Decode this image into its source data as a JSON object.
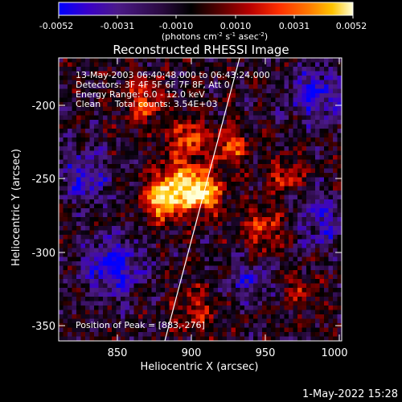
{
  "colorbar": {
    "ticks": [
      "-0.0052",
      "-0.0031",
      "-0.0010",
      "0.0010",
      "0.0031",
      "0.0052"
    ],
    "unit_prefix": "(photons cm",
    "unit_sup1": "-2",
    "unit_mid1": " s",
    "unit_sup2": "-1",
    "unit_mid2": " asec",
    "unit_sup3": "-2",
    "unit_end": ")",
    "palette": [
      "#0000ff",
      "#3a00c8",
      "#4b1a88",
      "#2a0a40",
      "#000000",
      "#5a0000",
      "#b80000",
      "#ff3000",
      "#ff7a00",
      "#ffc400",
      "#ffffd8"
    ]
  },
  "title": "Reconstructed RHESSI Image",
  "annotations": {
    "line1": "13-May-2003 06:40:48.000 to 06:43:24.000",
    "line2": "Detectors: 3F 4F 5F 6F 7F 8F, Att 0",
    "line3": "Energy Range: 6.0 - 12.0 keV",
    "line4": "Clean     Total counts: 3.54E+03",
    "peak": "Position of Peak = [883,-276]"
  },
  "axes": {
    "xlabel": "Heliocentric X (arcsec)",
    "ylabel": "Heliocentric Y (arcsec)",
    "xticks": [
      "850",
      "900",
      "950",
      "1000"
    ],
    "yticks": [
      "-200",
      "-250",
      "-300",
      "-350"
    ],
    "xrange": [
      813,
      1003
    ],
    "yrange": [
      -370,
      -180
    ]
  },
  "footer": {
    "date": "1-May-2022 15:28"
  },
  "image_sources": [
    {
      "x": 883,
      "y": -276,
      "amp": 1.0,
      "s": 9
    },
    {
      "x": 910,
      "y": -271,
      "amp": 1.0,
      "s": 9
    },
    {
      "x": 895,
      "y": -262,
      "amp": 0.75,
      "s": 12
    },
    {
      "x": 900,
      "y": -232,
      "amp": 0.7,
      "s": 8
    },
    {
      "x": 928,
      "y": -240,
      "amp": 0.7,
      "s": 8
    },
    {
      "x": 870,
      "y": -210,
      "amp": 0.6,
      "s": 10
    },
    {
      "x": 950,
      "y": -295,
      "amp": 0.55,
      "s": 10
    },
    {
      "x": 965,
      "y": -260,
      "amp": 0.5,
      "s": 8
    },
    {
      "x": 905,
      "y": -350,
      "amp": 0.45,
      "s": 10
    },
    {
      "x": 975,
      "y": -335,
      "amp": 0.35,
      "s": 8
    },
    {
      "x": 850,
      "y": -320,
      "amp": -0.7,
      "s": 14
    },
    {
      "x": 830,
      "y": -260,
      "amp": -0.6,
      "s": 12
    },
    {
      "x": 985,
      "y": -205,
      "amp": -0.7,
      "s": 12
    },
    {
      "x": 990,
      "y": -290,
      "amp": -0.5,
      "s": 12
    },
    {
      "x": 940,
      "y": -330,
      "amp": -0.45,
      "s": 10
    }
  ]
}
